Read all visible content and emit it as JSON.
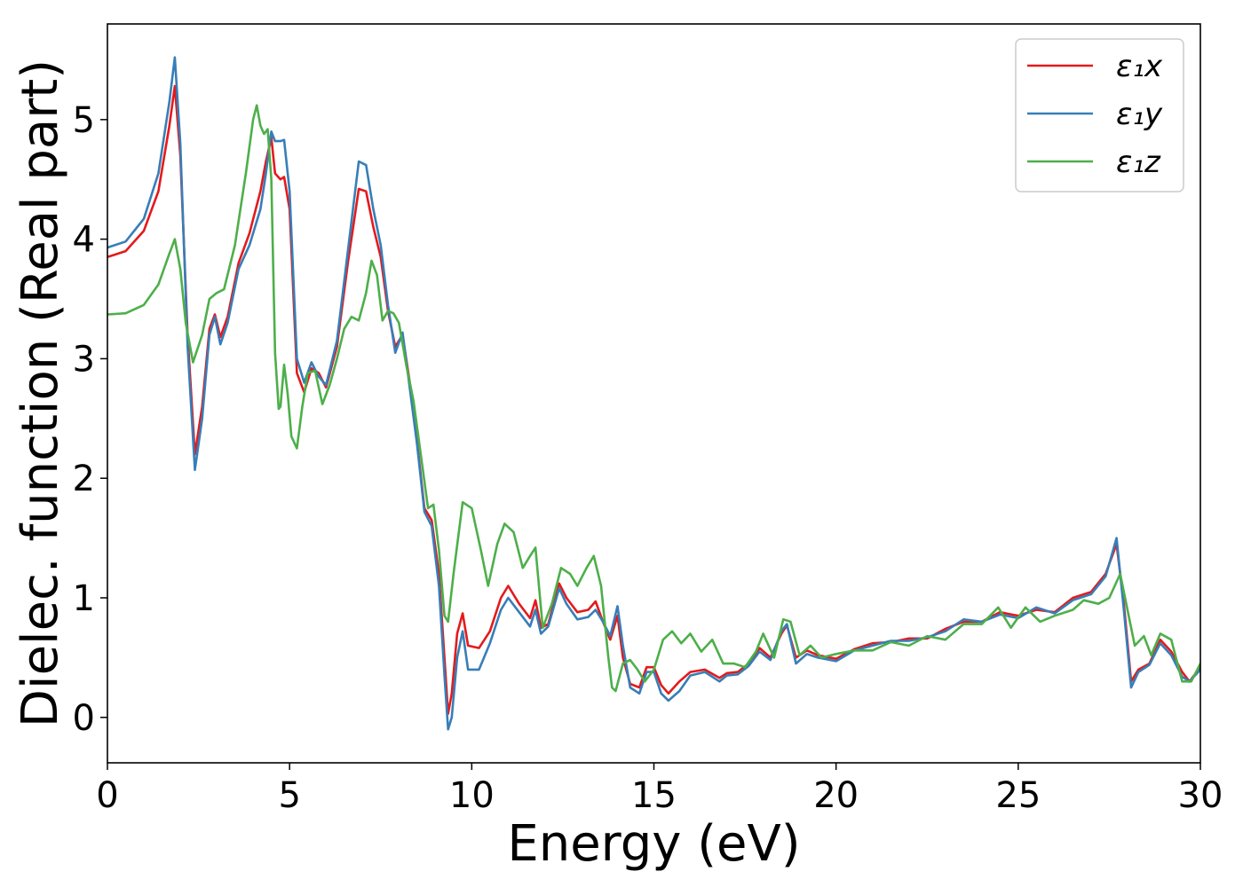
{
  "chart_data": {
    "type": "line",
    "title": "",
    "xlabel": "Energy (eV)",
    "ylabel": "Dielec. function (Real part)",
    "xlim": [
      0,
      30
    ],
    "ylim": [
      -0.38,
      5.8
    ],
    "xticks": [
      0,
      5,
      10,
      15,
      20,
      25,
      30
    ],
    "yticks": [
      0,
      1,
      2,
      3,
      4,
      5
    ],
    "grid": false,
    "legend_position": "top-right",
    "series": [
      {
        "name": "ε₁x",
        "color": "#e41a1c",
        "x": [
          0,
          0.5,
          1.0,
          1.4,
          1.7,
          1.85,
          2.0,
          2.2,
          2.4,
          2.6,
          2.8,
          2.95,
          3.1,
          3.3,
          3.6,
          3.9,
          4.2,
          4.35,
          4.5,
          4.6,
          4.75,
          4.85,
          5.0,
          5.2,
          5.4,
          5.6,
          5.8,
          6.0,
          6.3,
          6.6,
          6.9,
          7.1,
          7.3,
          7.5,
          7.7,
          7.9,
          8.1,
          8.3,
          8.5,
          8.7,
          8.9,
          9.1,
          9.25,
          9.35,
          9.45,
          9.6,
          9.75,
          9.9,
          10.2,
          10.5,
          10.8,
          11.0,
          11.3,
          11.6,
          11.75,
          11.9,
          12.1,
          12.4,
          12.6,
          12.9,
          13.2,
          13.4,
          13.6,
          13.8,
          14.0,
          14.15,
          14.35,
          14.6,
          14.8,
          15.0,
          15.2,
          15.4,
          15.7,
          16.0,
          16.4,
          16.8,
          17.0,
          17.3,
          17.6,
          17.9,
          18.2,
          18.5,
          18.65,
          18.9,
          19.2,
          19.5,
          20.0,
          20.5,
          21.0,
          21.5,
          22.0,
          22.5,
          23.0,
          23.5,
          24.0,
          24.5,
          25.0,
          25.5,
          26.0,
          26.5,
          27.0,
          27.4,
          27.7,
          27.9,
          28.1,
          28.3,
          28.6,
          28.9,
          29.2,
          29.5,
          29.7,
          30.0
        ],
        "values": [
          3.85,
          3.9,
          4.07,
          4.4,
          4.95,
          5.28,
          4.7,
          3.2,
          2.2,
          2.6,
          3.25,
          3.37,
          3.18,
          3.35,
          3.8,
          4.05,
          4.4,
          4.65,
          4.85,
          4.55,
          4.5,
          4.52,
          4.25,
          2.88,
          2.72,
          2.92,
          2.88,
          2.76,
          3.1,
          3.8,
          4.42,
          4.4,
          4.1,
          3.85,
          3.4,
          3.1,
          3.2,
          2.8,
          2.3,
          1.75,
          1.65,
          1.2,
          0.5,
          0.03,
          0.2,
          0.7,
          0.87,
          0.6,
          0.58,
          0.72,
          1.0,
          1.1,
          0.95,
          0.83,
          0.98,
          0.75,
          0.78,
          1.12,
          1.0,
          0.88,
          0.9,
          0.97,
          0.8,
          0.65,
          0.85,
          0.5,
          0.28,
          0.25,
          0.42,
          0.42,
          0.27,
          0.2,
          0.3,
          0.38,
          0.4,
          0.33,
          0.37,
          0.38,
          0.45,
          0.58,
          0.5,
          0.7,
          0.77,
          0.5,
          0.56,
          0.52,
          0.49,
          0.57,
          0.62,
          0.63,
          0.66,
          0.66,
          0.74,
          0.8,
          0.8,
          0.88,
          0.85,
          0.9,
          0.88,
          1.0,
          1.05,
          1.2,
          1.45,
          0.95,
          0.3,
          0.4,
          0.45,
          0.65,
          0.55,
          0.38,
          0.3,
          0.42
        ]
      },
      {
        "name": "ε₁y",
        "color": "#377eb8",
        "x": [
          0,
          0.5,
          1.0,
          1.4,
          1.7,
          1.85,
          2.0,
          2.2,
          2.4,
          2.6,
          2.8,
          2.95,
          3.1,
          3.3,
          3.6,
          3.9,
          4.2,
          4.35,
          4.5,
          4.6,
          4.75,
          4.85,
          5.0,
          5.2,
          5.4,
          5.6,
          5.8,
          6.0,
          6.3,
          6.6,
          6.9,
          7.1,
          7.3,
          7.5,
          7.7,
          7.9,
          8.1,
          8.3,
          8.5,
          8.7,
          8.9,
          9.1,
          9.25,
          9.35,
          9.45,
          9.6,
          9.75,
          9.9,
          10.2,
          10.5,
          10.8,
          11.0,
          11.3,
          11.6,
          11.75,
          11.9,
          12.1,
          12.4,
          12.6,
          12.9,
          13.2,
          13.4,
          13.6,
          13.8,
          14.0,
          14.15,
          14.35,
          14.6,
          14.8,
          15.0,
          15.2,
          15.4,
          15.7,
          16.0,
          16.4,
          16.8,
          17.0,
          17.3,
          17.6,
          17.9,
          18.2,
          18.5,
          18.65,
          18.9,
          19.2,
          19.5,
          20.0,
          20.5,
          21.0,
          21.5,
          22.0,
          22.5,
          23.0,
          23.5,
          24.0,
          24.5,
          25.0,
          25.5,
          26.0,
          26.5,
          27.0,
          27.4,
          27.7,
          27.9,
          28.1,
          28.3,
          28.6,
          28.9,
          29.2,
          29.5,
          29.7,
          30.0
        ],
        "values": [
          3.93,
          3.98,
          4.17,
          4.55,
          5.15,
          5.52,
          4.8,
          3.1,
          2.07,
          2.5,
          3.2,
          3.35,
          3.12,
          3.3,
          3.75,
          3.95,
          4.25,
          4.55,
          4.9,
          4.82,
          4.82,
          4.83,
          4.4,
          3.0,
          2.8,
          2.97,
          2.85,
          2.78,
          3.15,
          3.9,
          4.65,
          4.62,
          4.25,
          3.95,
          3.45,
          3.05,
          3.22,
          2.75,
          2.28,
          1.72,
          1.6,
          1.1,
          0.35,
          -0.1,
          0.0,
          0.5,
          0.72,
          0.4,
          0.4,
          0.62,
          0.9,
          1.0,
          0.88,
          0.76,
          0.9,
          0.7,
          0.76,
          1.08,
          0.95,
          0.82,
          0.84,
          0.9,
          0.8,
          0.68,
          0.93,
          0.6,
          0.25,
          0.2,
          0.38,
          0.38,
          0.2,
          0.14,
          0.22,
          0.35,
          0.38,
          0.3,
          0.35,
          0.36,
          0.43,
          0.55,
          0.48,
          0.72,
          0.78,
          0.45,
          0.53,
          0.5,
          0.47,
          0.56,
          0.6,
          0.64,
          0.64,
          0.67,
          0.72,
          0.82,
          0.8,
          0.86,
          0.83,
          0.92,
          0.87,
          0.98,
          1.03,
          1.18,
          1.5,
          0.9,
          0.25,
          0.38,
          0.44,
          0.62,
          0.52,
          0.34,
          0.3,
          0.4
        ]
      },
      {
        "name": "ε₁z",
        "color": "#4daf4a",
        "x": [
          0,
          0.5,
          1.0,
          1.4,
          1.7,
          1.85,
          2.0,
          2.15,
          2.35,
          2.6,
          2.8,
          3.0,
          3.2,
          3.5,
          3.8,
          4.0,
          4.1,
          4.2,
          4.3,
          4.4,
          4.5,
          4.6,
          4.7,
          4.75,
          4.85,
          4.95,
          5.05,
          5.2,
          5.35,
          5.5,
          5.7,
          5.9,
          6.1,
          6.3,
          6.5,
          6.7,
          6.9,
          7.1,
          7.25,
          7.4,
          7.55,
          7.7,
          7.85,
          8.0,
          8.2,
          8.4,
          8.6,
          8.8,
          8.95,
          9.1,
          9.25,
          9.35,
          9.5,
          9.75,
          10.0,
          10.25,
          10.45,
          10.7,
          10.9,
          11.15,
          11.4,
          11.6,
          11.75,
          11.95,
          12.2,
          12.45,
          12.7,
          12.9,
          13.15,
          13.35,
          13.55,
          13.75,
          13.85,
          13.95,
          14.15,
          14.35,
          14.55,
          14.75,
          15.0,
          15.25,
          15.5,
          15.75,
          16.0,
          16.3,
          16.6,
          16.9,
          17.2,
          17.5,
          17.8,
          18.0,
          18.3,
          18.55,
          18.75,
          19.0,
          19.3,
          19.6,
          20.0,
          20.5,
          21.0,
          21.5,
          22.0,
          22.5,
          23.0,
          23.5,
          24.0,
          24.45,
          24.8,
          25.2,
          25.6,
          26.0,
          26.5,
          26.8,
          27.2,
          27.5,
          27.8,
          28.0,
          28.2,
          28.45,
          28.65,
          28.9,
          29.2,
          29.5,
          29.75,
          30.0
        ],
        "values": [
          3.37,
          3.38,
          3.45,
          3.62,
          3.88,
          4.0,
          3.75,
          3.3,
          2.97,
          3.2,
          3.5,
          3.55,
          3.58,
          3.95,
          4.55,
          5.0,
          5.12,
          4.95,
          4.88,
          4.92,
          4.5,
          3.05,
          2.58,
          2.6,
          2.95,
          2.7,
          2.35,
          2.25,
          2.6,
          2.88,
          2.9,
          2.62,
          2.78,
          3.0,
          3.25,
          3.35,
          3.32,
          3.55,
          3.82,
          3.7,
          3.32,
          3.4,
          3.38,
          3.3,
          2.95,
          2.65,
          2.2,
          1.75,
          1.78,
          1.4,
          0.85,
          0.8,
          1.2,
          1.8,
          1.75,
          1.4,
          1.1,
          1.45,
          1.62,
          1.55,
          1.25,
          1.35,
          1.42,
          0.75,
          0.95,
          1.25,
          1.2,
          1.1,
          1.25,
          1.35,
          1.1,
          0.5,
          0.25,
          0.22,
          0.45,
          0.48,
          0.4,
          0.3,
          0.4,
          0.65,
          0.72,
          0.62,
          0.7,
          0.55,
          0.65,
          0.45,
          0.45,
          0.42,
          0.55,
          0.7,
          0.5,
          0.82,
          0.8,
          0.52,
          0.6,
          0.5,
          0.53,
          0.56,
          0.56,
          0.63,
          0.6,
          0.68,
          0.65,
          0.78,
          0.78,
          0.92,
          0.75,
          0.92,
          0.8,
          0.85,
          0.9,
          0.98,
          0.95,
          1.0,
          1.2,
          0.9,
          0.6,
          0.68,
          0.52,
          0.7,
          0.65,
          0.3,
          0.3,
          0.45
        ]
      }
    ]
  }
}
